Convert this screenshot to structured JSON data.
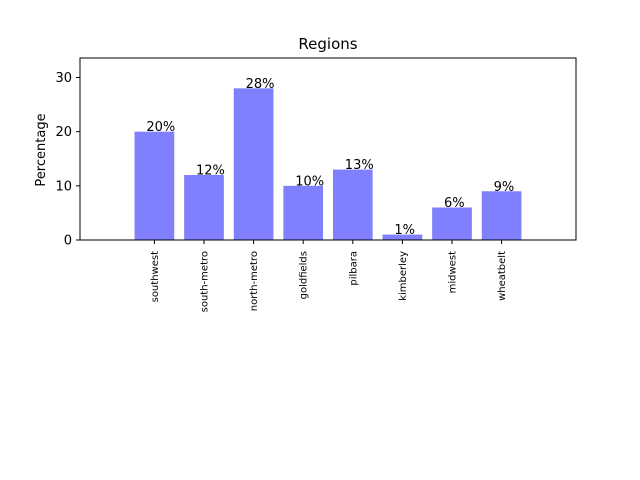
{
  "chart_data": {
    "type": "bar",
    "title": "Regions",
    "xlabel": "",
    "ylabel": "Percentage",
    "categories": [
      "southwest",
      "south-metro",
      "north-metro",
      "goldfields",
      "pilbara",
      "kimberley",
      "midwest",
      "wheatbelt"
    ],
    "values": [
      20,
      12,
      28,
      10,
      13,
      1,
      6,
      9
    ],
    "data_labels": [
      "20%",
      "12%",
      "28%",
      "10%",
      "13%",
      "1%",
      "6%",
      "9%"
    ],
    "ylim": [
      0,
      33.6
    ],
    "yticks": [
      0,
      10,
      20,
      30
    ],
    "ytick_labels": [
      "0",
      "10",
      "20",
      "30"
    ],
    "bar_color": "#8080ff",
    "grid": false,
    "legend": "none"
  }
}
